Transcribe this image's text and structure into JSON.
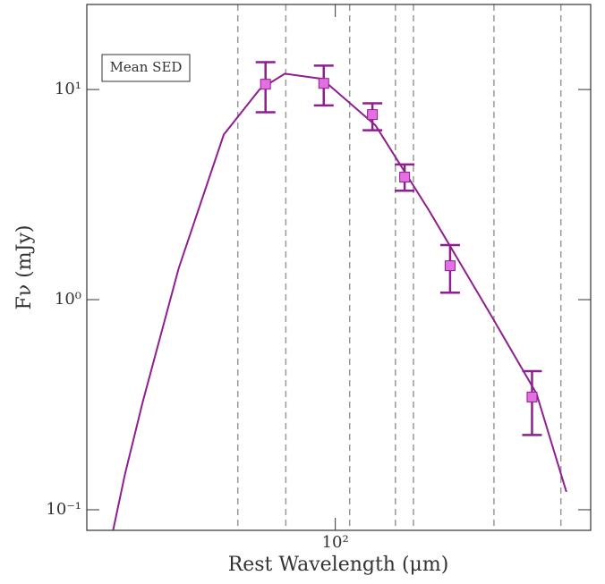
{
  "chart_data": {
    "type": "scatter",
    "xlabel": "Rest Wavelength (μm)",
    "ylabel": "Fν (mJy)",
    "annotation": "Mean SED",
    "xlog": true,
    "ylog": true,
    "xlim": [
      26.4,
      393
    ],
    "ylim": [
      0.0798,
      25.4
    ],
    "xticks": [
      {
        "value": 100,
        "label": "10²"
      }
    ],
    "yticks": [
      {
        "value": 0.1,
        "label": "10⁻¹"
      },
      {
        "value": 1,
        "label": "10⁰"
      },
      {
        "value": 10,
        "label": "10¹"
      }
    ],
    "vlines": [
      59.3,
      76.7,
      108,
      138,
      152,
      234,
      335
    ],
    "vline_color": "#999999",
    "series": [
      {
        "name": "Mean SED",
        "color": "#e36fe3",
        "edge_color": "#8e1f8e",
        "x": [
          68.8,
          94,
          122,
          145,
          185,
          287
        ],
        "values": [
          10.6,
          10.7,
          7.6,
          3.83,
          1.45,
          0.344
        ],
        "err_low": [
          7.8,
          8.4,
          6.4,
          3.3,
          1.08,
          0.227
        ],
        "err_high": [
          13.5,
          13.0,
          8.6,
          4.4,
          1.82,
          0.457
        ]
      }
    ],
    "fit": {
      "color": "#8e1f8e",
      "x": [
        30.4,
        32.4,
        35.6,
        43.2,
        55,
        66.6,
        76.3,
        93,
        124,
        165,
        232,
        294,
        345
      ],
      "values": [
        0.08,
        0.148,
        0.324,
        1.41,
        6.1,
        10,
        11.9,
        11.25,
        6.76,
        2.67,
        0.822,
        0.357,
        0.1217
      ]
    }
  }
}
